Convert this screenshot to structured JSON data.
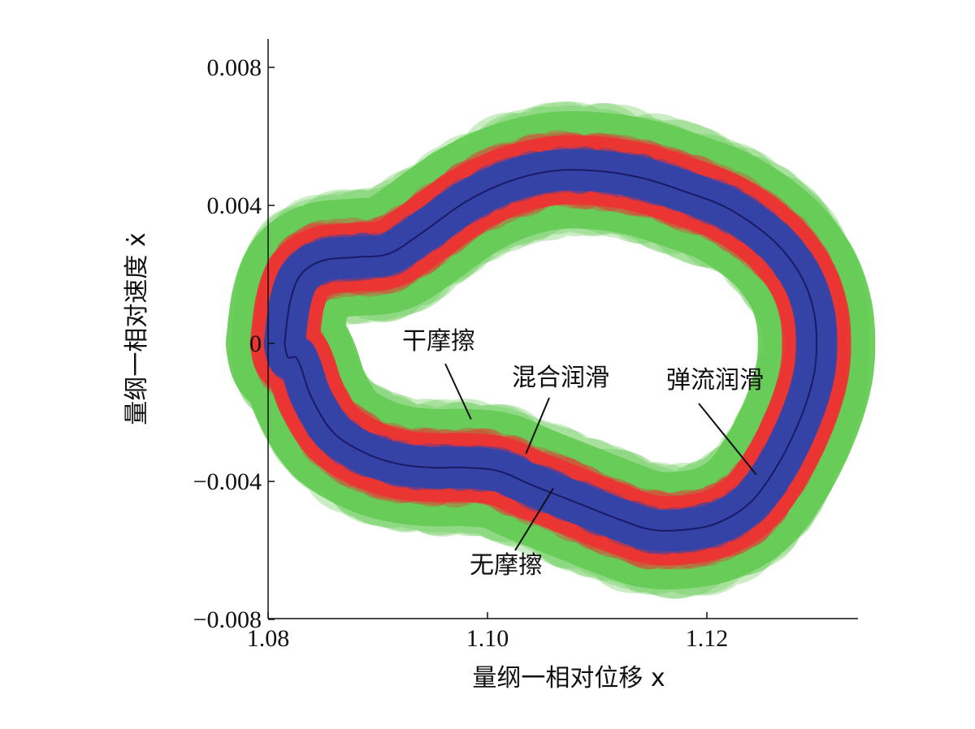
{
  "chart_data": {
    "type": "line",
    "title": "",
    "xlabel": "量纲一相对位移 x",
    "ylabel": "量纲一相对速度 ẋ",
    "xlim": [
      1.08,
      1.135
    ],
    "ylim": [
      -0.008,
      0.0085
    ],
    "xticks": [
      1.08,
      1.1,
      1.12
    ],
    "xtick_labels": [
      "1.08",
      "1.10",
      "1.12"
    ],
    "yticks": [
      -0.008,
      -0.004,
      0,
      0.004,
      0.008
    ],
    "ytick_labels": [
      "−0.008",
      "−0.004",
      "0",
      "0.004",
      "0.008"
    ],
    "grid": false,
    "legend": "none",
    "series": [
      {
        "name": "干摩擦",
        "color": "#66cc55",
        "band_halfwidth": 0.0017,
        "x": [
          1.0815,
          1.082,
          1.083,
          1.085,
          1.088,
          1.091,
          1.094,
          1.098,
          1.102,
          1.106,
          1.11,
          1.114,
          1.118,
          1.122,
          1.126,
          1.1285,
          1.1297,
          1.13,
          1.1297,
          1.1285,
          1.1265,
          1.124,
          1.121,
          1.118,
          1.115,
          1.112,
          1.108,
          1.104,
          1.101,
          1.098,
          1.095,
          1.092,
          1.089,
          1.086,
          1.084,
          1.083,
          1.0825,
          1.0818,
          1.0815
        ],
        "y": [
          0.0,
          0.0012,
          0.002,
          0.0024,
          0.0025,
          0.0026,
          0.0032,
          0.0041,
          0.0047,
          0.005,
          0.005,
          0.0048,
          0.0044,
          0.0039,
          0.003,
          0.002,
          0.001,
          0.0,
          -0.001,
          -0.0022,
          -0.0035,
          -0.0046,
          -0.0052,
          -0.0054,
          -0.0054,
          -0.0051,
          -0.0046,
          -0.0041,
          -0.0037,
          -0.0036,
          -0.0036,
          -0.0035,
          -0.0032,
          -0.0026,
          -0.0016,
          -0.0007,
          -0.0004,
          -0.0004,
          0.0
        ]
      },
      {
        "name": "混合润滑",
        "color": "#ee3333",
        "band_halfwidth": 0.001,
        "x": [
          1.0815,
          1.082,
          1.083,
          1.085,
          1.088,
          1.091,
          1.094,
          1.098,
          1.102,
          1.106,
          1.11,
          1.114,
          1.118,
          1.122,
          1.126,
          1.1285,
          1.1297,
          1.13,
          1.1297,
          1.1285,
          1.1265,
          1.124,
          1.121,
          1.118,
          1.115,
          1.112,
          1.108,
          1.104,
          1.101,
          1.098,
          1.095,
          1.092,
          1.089,
          1.086,
          1.084,
          1.083,
          1.0825,
          1.0818,
          1.0815
        ],
        "y": [
          0.0,
          0.0012,
          0.002,
          0.0024,
          0.0025,
          0.0026,
          0.0032,
          0.0041,
          0.0047,
          0.005,
          0.005,
          0.0048,
          0.0044,
          0.0039,
          0.003,
          0.002,
          0.001,
          0.0,
          -0.001,
          -0.0022,
          -0.0035,
          -0.0046,
          -0.0052,
          -0.0054,
          -0.0054,
          -0.0051,
          -0.0046,
          -0.0041,
          -0.0037,
          -0.0036,
          -0.0036,
          -0.0035,
          -0.0032,
          -0.0026,
          -0.0016,
          -0.0007,
          -0.0004,
          -0.0004,
          0.0
        ]
      },
      {
        "name": "弹流润滑",
        "color": "#3344aa",
        "band_halfwidth": 0.0006,
        "x": [
          1.0815,
          1.082,
          1.083,
          1.085,
          1.088,
          1.091,
          1.094,
          1.098,
          1.102,
          1.106,
          1.11,
          1.114,
          1.118,
          1.122,
          1.126,
          1.1285,
          1.1297,
          1.13,
          1.1297,
          1.1285,
          1.1265,
          1.124,
          1.121,
          1.118,
          1.115,
          1.112,
          1.108,
          1.104,
          1.101,
          1.098,
          1.095,
          1.092,
          1.089,
          1.086,
          1.084,
          1.083,
          1.0825,
          1.0818,
          1.0815
        ],
        "y": [
          0.0,
          0.0012,
          0.002,
          0.0024,
          0.0025,
          0.0026,
          0.0032,
          0.0041,
          0.0047,
          0.005,
          0.005,
          0.0048,
          0.0044,
          0.0039,
          0.003,
          0.002,
          0.001,
          0.0,
          -0.001,
          -0.0022,
          -0.0035,
          -0.0046,
          -0.0052,
          -0.0054,
          -0.0054,
          -0.0051,
          -0.0046,
          -0.0041,
          -0.0037,
          -0.0036,
          -0.0036,
          -0.0035,
          -0.0032,
          -0.0026,
          -0.0016,
          -0.0007,
          -0.0004,
          -0.0004,
          0.0
        ]
      },
      {
        "name": "无摩擦",
        "color": "#1a1a66",
        "band_halfwidth": 0,
        "x": [
          1.0815,
          1.082,
          1.083,
          1.085,
          1.088,
          1.091,
          1.094,
          1.098,
          1.102,
          1.106,
          1.11,
          1.114,
          1.118,
          1.122,
          1.126,
          1.1285,
          1.1297,
          1.13,
          1.1297,
          1.1285,
          1.1265,
          1.124,
          1.121,
          1.118,
          1.115,
          1.112,
          1.108,
          1.104,
          1.101,
          1.098,
          1.095,
          1.092,
          1.089,
          1.086,
          1.084,
          1.083,
          1.0825,
          1.0818,
          1.0815
        ],
        "y": [
          0.0,
          0.0012,
          0.002,
          0.0024,
          0.0025,
          0.0026,
          0.0032,
          0.0041,
          0.0047,
          0.005,
          0.005,
          0.0048,
          0.0044,
          0.0039,
          0.003,
          0.002,
          0.001,
          0.0,
          -0.001,
          -0.0022,
          -0.0035,
          -0.0046,
          -0.0052,
          -0.0054,
          -0.0054,
          -0.0051,
          -0.0046,
          -0.0041,
          -0.0037,
          -0.0036,
          -0.0036,
          -0.0035,
          -0.0032,
          -0.0026,
          -0.0016,
          -0.0007,
          -0.0004,
          -0.0004,
          0.0
        ]
      }
    ],
    "annotations": [
      {
        "text": "干摩擦",
        "target_x": 1.0985,
        "target_y": -0.0022
      },
      {
        "text": "混合润滑",
        "target_x": 1.1035,
        "target_y": -0.0032
      },
      {
        "text": "弹流润滑",
        "target_x": 1.1245,
        "target_y": -0.0038
      },
      {
        "text": "无摩擦",
        "target_x": 1.106,
        "target_y": -0.0042
      }
    ]
  }
}
